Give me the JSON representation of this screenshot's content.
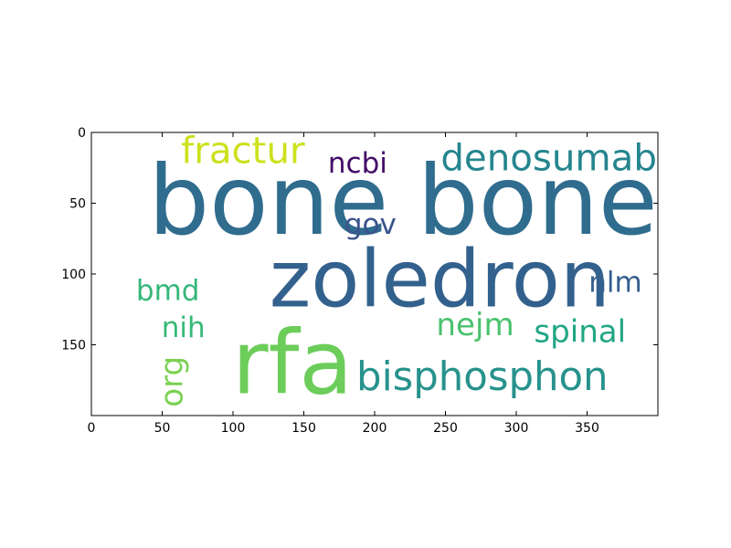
{
  "chart_data": {
    "type": "wordcloud",
    "title": "",
    "xlabel": "",
    "ylabel": "",
    "xlim": [
      0,
      400
    ],
    "ylim": [
      200,
      0
    ],
    "xticks": [
      0,
      50,
      100,
      150,
      200,
      250,
      300,
      350
    ],
    "yticks": [
      0,
      50,
      100,
      150
    ],
    "grid": false,
    "words": [
      {
        "text": "bone",
        "x": 125,
        "y": 48,
        "size": 68,
        "color": "#2f6c8e",
        "rotate": 0
      },
      {
        "text": "bone",
        "x": 315,
        "y": 48,
        "size": 68,
        "color": "#2f6c8e",
        "rotate": 0
      },
      {
        "text": "zoledron",
        "x": 246,
        "y": 104,
        "size": 56,
        "color": "#33618d",
        "rotate": 0
      },
      {
        "text": "rfa",
        "x": 142,
        "y": 163,
        "size": 62,
        "color": "#6ccd5a",
        "rotate": 0
      },
      {
        "text": "bisphosphon",
        "x": 276,
        "y": 173,
        "size": 28,
        "color": "#27928c",
        "rotate": 0
      },
      {
        "text": "fractur",
        "x": 107,
        "y": 13,
        "size": 26,
        "color": "#cde11d",
        "rotate": 0
      },
      {
        "text": "ncbi",
        "x": 188,
        "y": 22,
        "size": 20,
        "color": "#440a68",
        "rotate": 0
      },
      {
        "text": "denosumab",
        "x": 323,
        "y": 18,
        "size": 26,
        "color": "#25858e",
        "rotate": 0
      },
      {
        "text": "gov",
        "x": 197,
        "y": 65,
        "size": 20,
        "color": "#3a548c",
        "rotate": 0
      },
      {
        "text": "bmd",
        "x": 54,
        "y": 112,
        "size": 20,
        "color": "#35b779",
        "rotate": 0
      },
      {
        "text": "nlm",
        "x": 370,
        "y": 106,
        "size": 20,
        "color": "#355f8d",
        "rotate": 0
      },
      {
        "text": "nih",
        "x": 65,
        "y": 138,
        "size": 20,
        "color": "#38b977",
        "rotate": 0
      },
      {
        "text": "nejm",
        "x": 271,
        "y": 136,
        "size": 22,
        "color": "#4ac16d",
        "rotate": 0
      },
      {
        "text": "spinal",
        "x": 345,
        "y": 141,
        "size": 22,
        "color": "#21a685",
        "rotate": 0
      },
      {
        "text": "org",
        "x": 57,
        "y": 176,
        "size": 22,
        "color": "#7ad151",
        "rotate": -90
      }
    ]
  }
}
